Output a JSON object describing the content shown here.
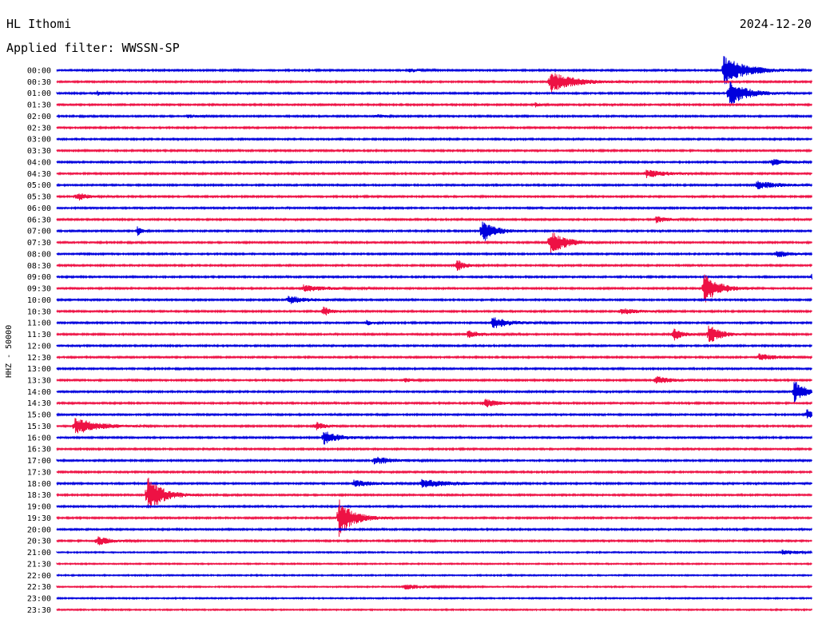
{
  "header": {
    "station": "HL Ithomi",
    "date": "2024-12-20",
    "filter_label": "Applied filter: WWSSN-SP"
  },
  "channel_label": "HHZ - 50000",
  "chart_data": {
    "type": "line",
    "title": "HL Ithomi",
    "row_labels": [
      "00:00",
      "00:30",
      "01:00",
      "01:30",
      "02:00",
      "02:30",
      "03:00",
      "03:30",
      "04:00",
      "04:30",
      "05:00",
      "05:30",
      "06:00",
      "06:30",
      "07:00",
      "07:30",
      "08:00",
      "08:30",
      "09:00",
      "09:30",
      "10:00",
      "10:30",
      "11:00",
      "11:30",
      "12:00",
      "12:30",
      "13:00",
      "13:30",
      "14:00",
      "14:30",
      "15:00",
      "15:30",
      "16:00",
      "16:30",
      "17:00",
      "17:30",
      "18:00",
      "18:30",
      "19:00",
      "19:30",
      "20:00",
      "20:30",
      "21:00",
      "21:30",
      "22:00",
      "22:30",
      "23:00",
      "23:30"
    ],
    "trace_colors": [
      "#0000dd",
      "#ee1144"
    ],
    "row_minutes": 30,
    "events": [
      {
        "row": 0,
        "minute": 26.5,
        "amplitude": 18,
        "duration": 1.5
      },
      {
        "row": 0,
        "minute": 14.0,
        "amplitude": 3,
        "duration": 0.5
      },
      {
        "row": 1,
        "minute": 19.6,
        "amplitude": 14,
        "duration": 1.5
      },
      {
        "row": 2,
        "minute": 26.7,
        "amplitude": 16,
        "duration": 1.2
      },
      {
        "row": 2,
        "minute": 1.6,
        "amplitude": 3,
        "duration": 0.3
      },
      {
        "row": 3,
        "minute": 19.0,
        "amplitude": 3,
        "duration": 0.3
      },
      {
        "row": 4,
        "minute": 5.2,
        "amplitude": 2,
        "duration": 0.6
      },
      {
        "row": 4,
        "minute": 12.7,
        "amplitude": 2,
        "duration": 0.6
      },
      {
        "row": 8,
        "minute": 28.4,
        "amplitude": 4,
        "duration": 1.0
      },
      {
        "row": 9,
        "minute": 23.4,
        "amplitude": 5,
        "duration": 1.3
      },
      {
        "row": 10,
        "minute": 27.8,
        "amplitude": 5,
        "duration": 1.5
      },
      {
        "row": 11,
        "minute": 0.8,
        "amplitude": 6,
        "duration": 0.6
      },
      {
        "row": 13,
        "minute": 23.8,
        "amplitude": 4,
        "duration": 0.8
      },
      {
        "row": 14,
        "minute": 16.9,
        "amplitude": 16,
        "duration": 0.8
      },
      {
        "row": 14,
        "minute": 3.2,
        "amplitude": 6,
        "duration": 0.3
      },
      {
        "row": 15,
        "minute": 19.6,
        "amplitude": 16,
        "duration": 1.0
      },
      {
        "row": 16,
        "minute": 28.6,
        "amplitude": 4,
        "duration": 1.0
      },
      {
        "row": 17,
        "minute": 15.9,
        "amplitude": 8,
        "duration": 0.5
      },
      {
        "row": 18,
        "minute": 30.0,
        "amplitude": 4,
        "duration": 0.5
      },
      {
        "row": 19,
        "minute": 25.7,
        "amplitude": 20,
        "duration": 1.0
      },
      {
        "row": 19,
        "minute": 9.8,
        "amplitude": 4,
        "duration": 1.5
      },
      {
        "row": 20,
        "minute": 9.2,
        "amplitude": 5,
        "duration": 1.2
      },
      {
        "row": 21,
        "minute": 10.6,
        "amplitude": 6,
        "duration": 0.5
      },
      {
        "row": 21,
        "minute": 22.4,
        "amplitude": 4,
        "duration": 1.2
      },
      {
        "row": 22,
        "minute": 17.3,
        "amplitude": 7,
        "duration": 1.2
      },
      {
        "row": 22,
        "minute": 12.3,
        "amplitude": 3,
        "duration": 0.5
      },
      {
        "row": 23,
        "minute": 24.5,
        "amplitude": 8,
        "duration": 0.6
      },
      {
        "row": 23,
        "minute": 25.9,
        "amplitude": 12,
        "duration": 0.8
      },
      {
        "row": 23,
        "minute": 16.3,
        "amplitude": 5,
        "duration": 1.0
      },
      {
        "row": 25,
        "minute": 27.9,
        "amplitude": 4,
        "duration": 1.2
      },
      {
        "row": 27,
        "minute": 23.8,
        "amplitude": 5,
        "duration": 1.0
      },
      {
        "row": 27,
        "minute": 13.8,
        "amplitude": 3,
        "duration": 0.5
      },
      {
        "row": 28,
        "minute": 29.3,
        "amplitude": 14,
        "duration": 0.8
      },
      {
        "row": 29,
        "minute": 17.0,
        "amplitude": 6,
        "duration": 0.8
      },
      {
        "row": 30,
        "minute": 29.8,
        "amplitude": 7,
        "duration": 0.4
      },
      {
        "row": 31,
        "minute": 0.7,
        "amplitude": 11,
        "duration": 1.5
      },
      {
        "row": 31,
        "minute": 10.3,
        "amplitude": 5,
        "duration": 0.6
      },
      {
        "row": 32,
        "minute": 10.6,
        "amplitude": 9,
        "duration": 1.0
      },
      {
        "row": 34,
        "minute": 12.6,
        "amplitude": 5,
        "duration": 1.2
      },
      {
        "row": 36,
        "minute": 14.5,
        "amplitude": 5,
        "duration": 2.0
      },
      {
        "row": 36,
        "minute": 11.8,
        "amplitude": 4,
        "duration": 1.5
      },
      {
        "row": 37,
        "minute": 3.6,
        "amplitude": 24,
        "duration": 1.0
      },
      {
        "row": 39,
        "minute": 11.2,
        "amplitude": 24,
        "duration": 1.0
      },
      {
        "row": 41,
        "minute": 1.6,
        "amplitude": 6,
        "duration": 0.8
      },
      {
        "row": 42,
        "minute": 28.8,
        "amplitude": 3,
        "duration": 1.2
      },
      {
        "row": 45,
        "minute": 13.8,
        "amplitude": 3,
        "duration": 1.5
      }
    ]
  }
}
